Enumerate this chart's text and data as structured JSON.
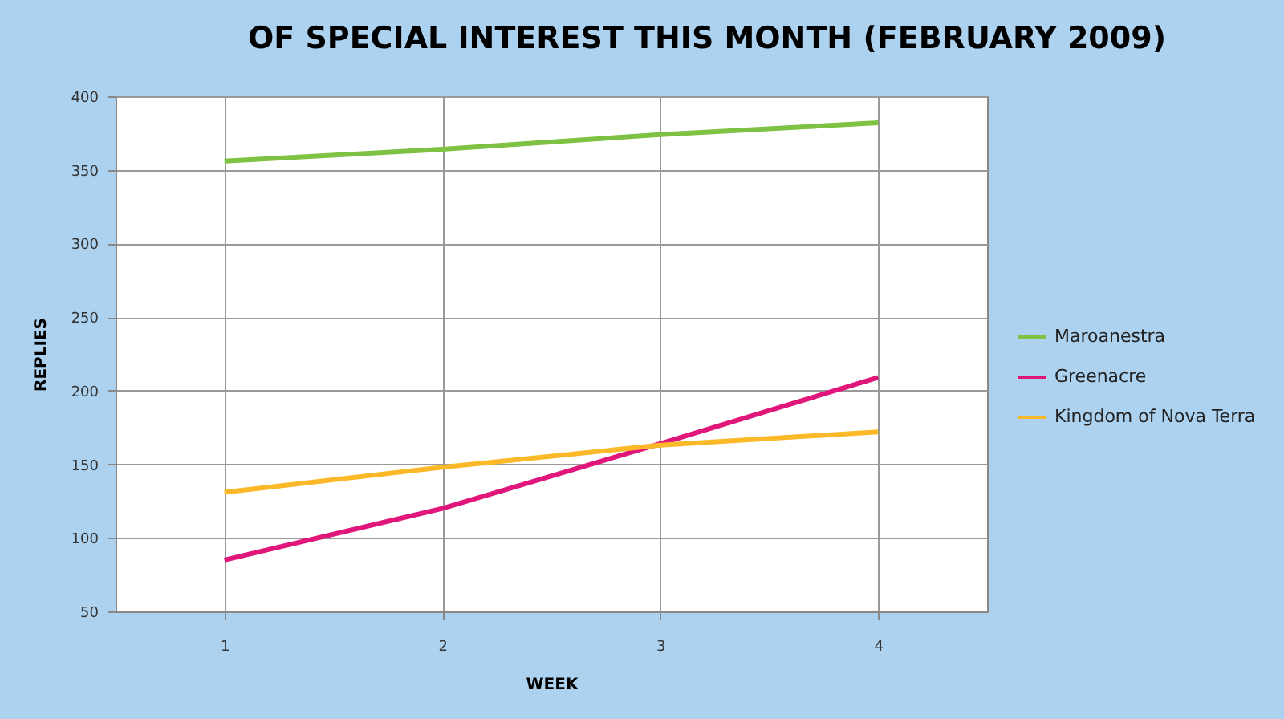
{
  "chart_data": {
    "type": "line",
    "title": "OF SPECIAL INTEREST THIS MONTH (FEBRUARY 2009)",
    "xlabel": "WEEK",
    "ylabel": "REPLIES",
    "categories": [
      "1",
      "2",
      "3",
      "4"
    ],
    "series": [
      {
        "name": "Maroanestra",
        "color": "#7dc242",
        "values": [
          356,
          364,
          374,
          382
        ]
      },
      {
        "name": "Greenacre",
        "color": "#e0167a",
        "values": [
          85,
          120,
          164,
          209
        ]
      },
      {
        "name": "Kingdom of Nova Terra",
        "color": "#fbb829",
        "values": [
          131,
          148,
          163,
          172
        ]
      }
    ],
    "ylim": [
      50,
      400
    ],
    "yticks": [
      50,
      100,
      150,
      200,
      250,
      300,
      350,
      400
    ],
    "grid": true,
    "legend": "right",
    "marker": "none",
    "line_style": "solid"
  }
}
